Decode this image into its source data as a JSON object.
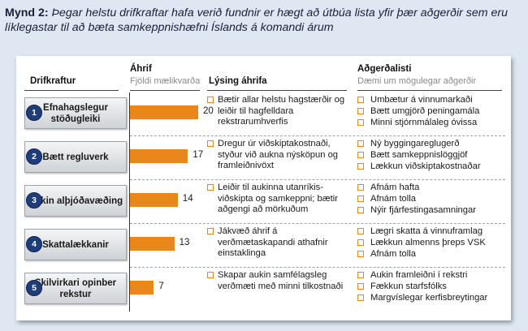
{
  "figure": {
    "label": "Mynd 2:",
    "title": "Þegar helstu drifkraftar hafa verið fundnir er hægt að útbúa lista yfir þær aðgerðir sem eru líklegastar til að bæta samkeppnishæfni Íslands á komandi árum"
  },
  "headers": {
    "driver": "Drifkraftur",
    "impact": "Áhrif",
    "impact_sub": "Fjöldi mælikvarða",
    "description": "Lýsing áhrifa",
    "actions": "Aðgerðalisti",
    "actions_sub": "Dæmi um mögulegar aðgerðir"
  },
  "colors": {
    "bar": "#e9871b",
    "number_badge": "#1f3d7a",
    "background": "#dfe7f2"
  },
  "chart_data": {
    "type": "bar",
    "orientation": "horizontal",
    "categories": [
      "Efnahagslegur stöðugleiki",
      "Bætt regluverk",
      "Aukin alþjóðavæðing",
      "Skattalækkanir",
      "Skilvirkari opinber rekstur"
    ],
    "values": [
      20,
      17,
      14,
      13,
      7
    ],
    "xlim": [
      0,
      20
    ]
  },
  "rows": [
    {
      "num": "1",
      "driver": "Efnahagslegur stöðugleiki",
      "value_label": "20",
      "description": "Bætir allar helstu hagstærðir og leiðir til hagfelldara rekstrarumhverfis",
      "actions": [
        "Umbætur á vinnumarkaði",
        "Bætt umgjörð peningamála",
        "Minni stjórnmálaleg óvissa"
      ]
    },
    {
      "num": "2",
      "driver": "Bætt regluverk",
      "value_label": "17",
      "description": "Dregur úr viðskiptakostnaði, styður við aukna nýsköpun og framleiðnivöxt",
      "actions": [
        "Ný byggingareglugerð",
        "Bætt samkeppnislöggjöf",
        "Lækkun viðskiptakostnaðar"
      ]
    },
    {
      "num": "3",
      "driver": "Aukin alþjóðavæðing",
      "value_label": "14",
      "description": "Leiðir til aukinna utanríkis-viðskipta og samkeppni; bætir aðgengi að mörkuðum",
      "actions": [
        "Afnám hafta",
        "Afnám tolla",
        "Nýir fjárfestingasamningar"
      ]
    },
    {
      "num": "4",
      "driver": "Skattalækkanir",
      "value_label": "13",
      "description": "Jákvæð áhrif á verðmætaskapandi athafnir einstaklinga",
      "actions": [
        "Lægri skatta á vinnuframlag",
        "Lækkun almenns þreps VSK",
        "Afnám tolla"
      ]
    },
    {
      "num": "5",
      "driver": "Skilvirkari opinber rekstur",
      "value_label": "7",
      "description": "Skapar aukin samfélagsleg verðmæti með minni tilkostnaði",
      "actions": [
        "Aukin framleiðni í rekstri",
        "Fækkun starfsfólks",
        "Margvíslegar kerfisbreytingar"
      ]
    }
  ]
}
